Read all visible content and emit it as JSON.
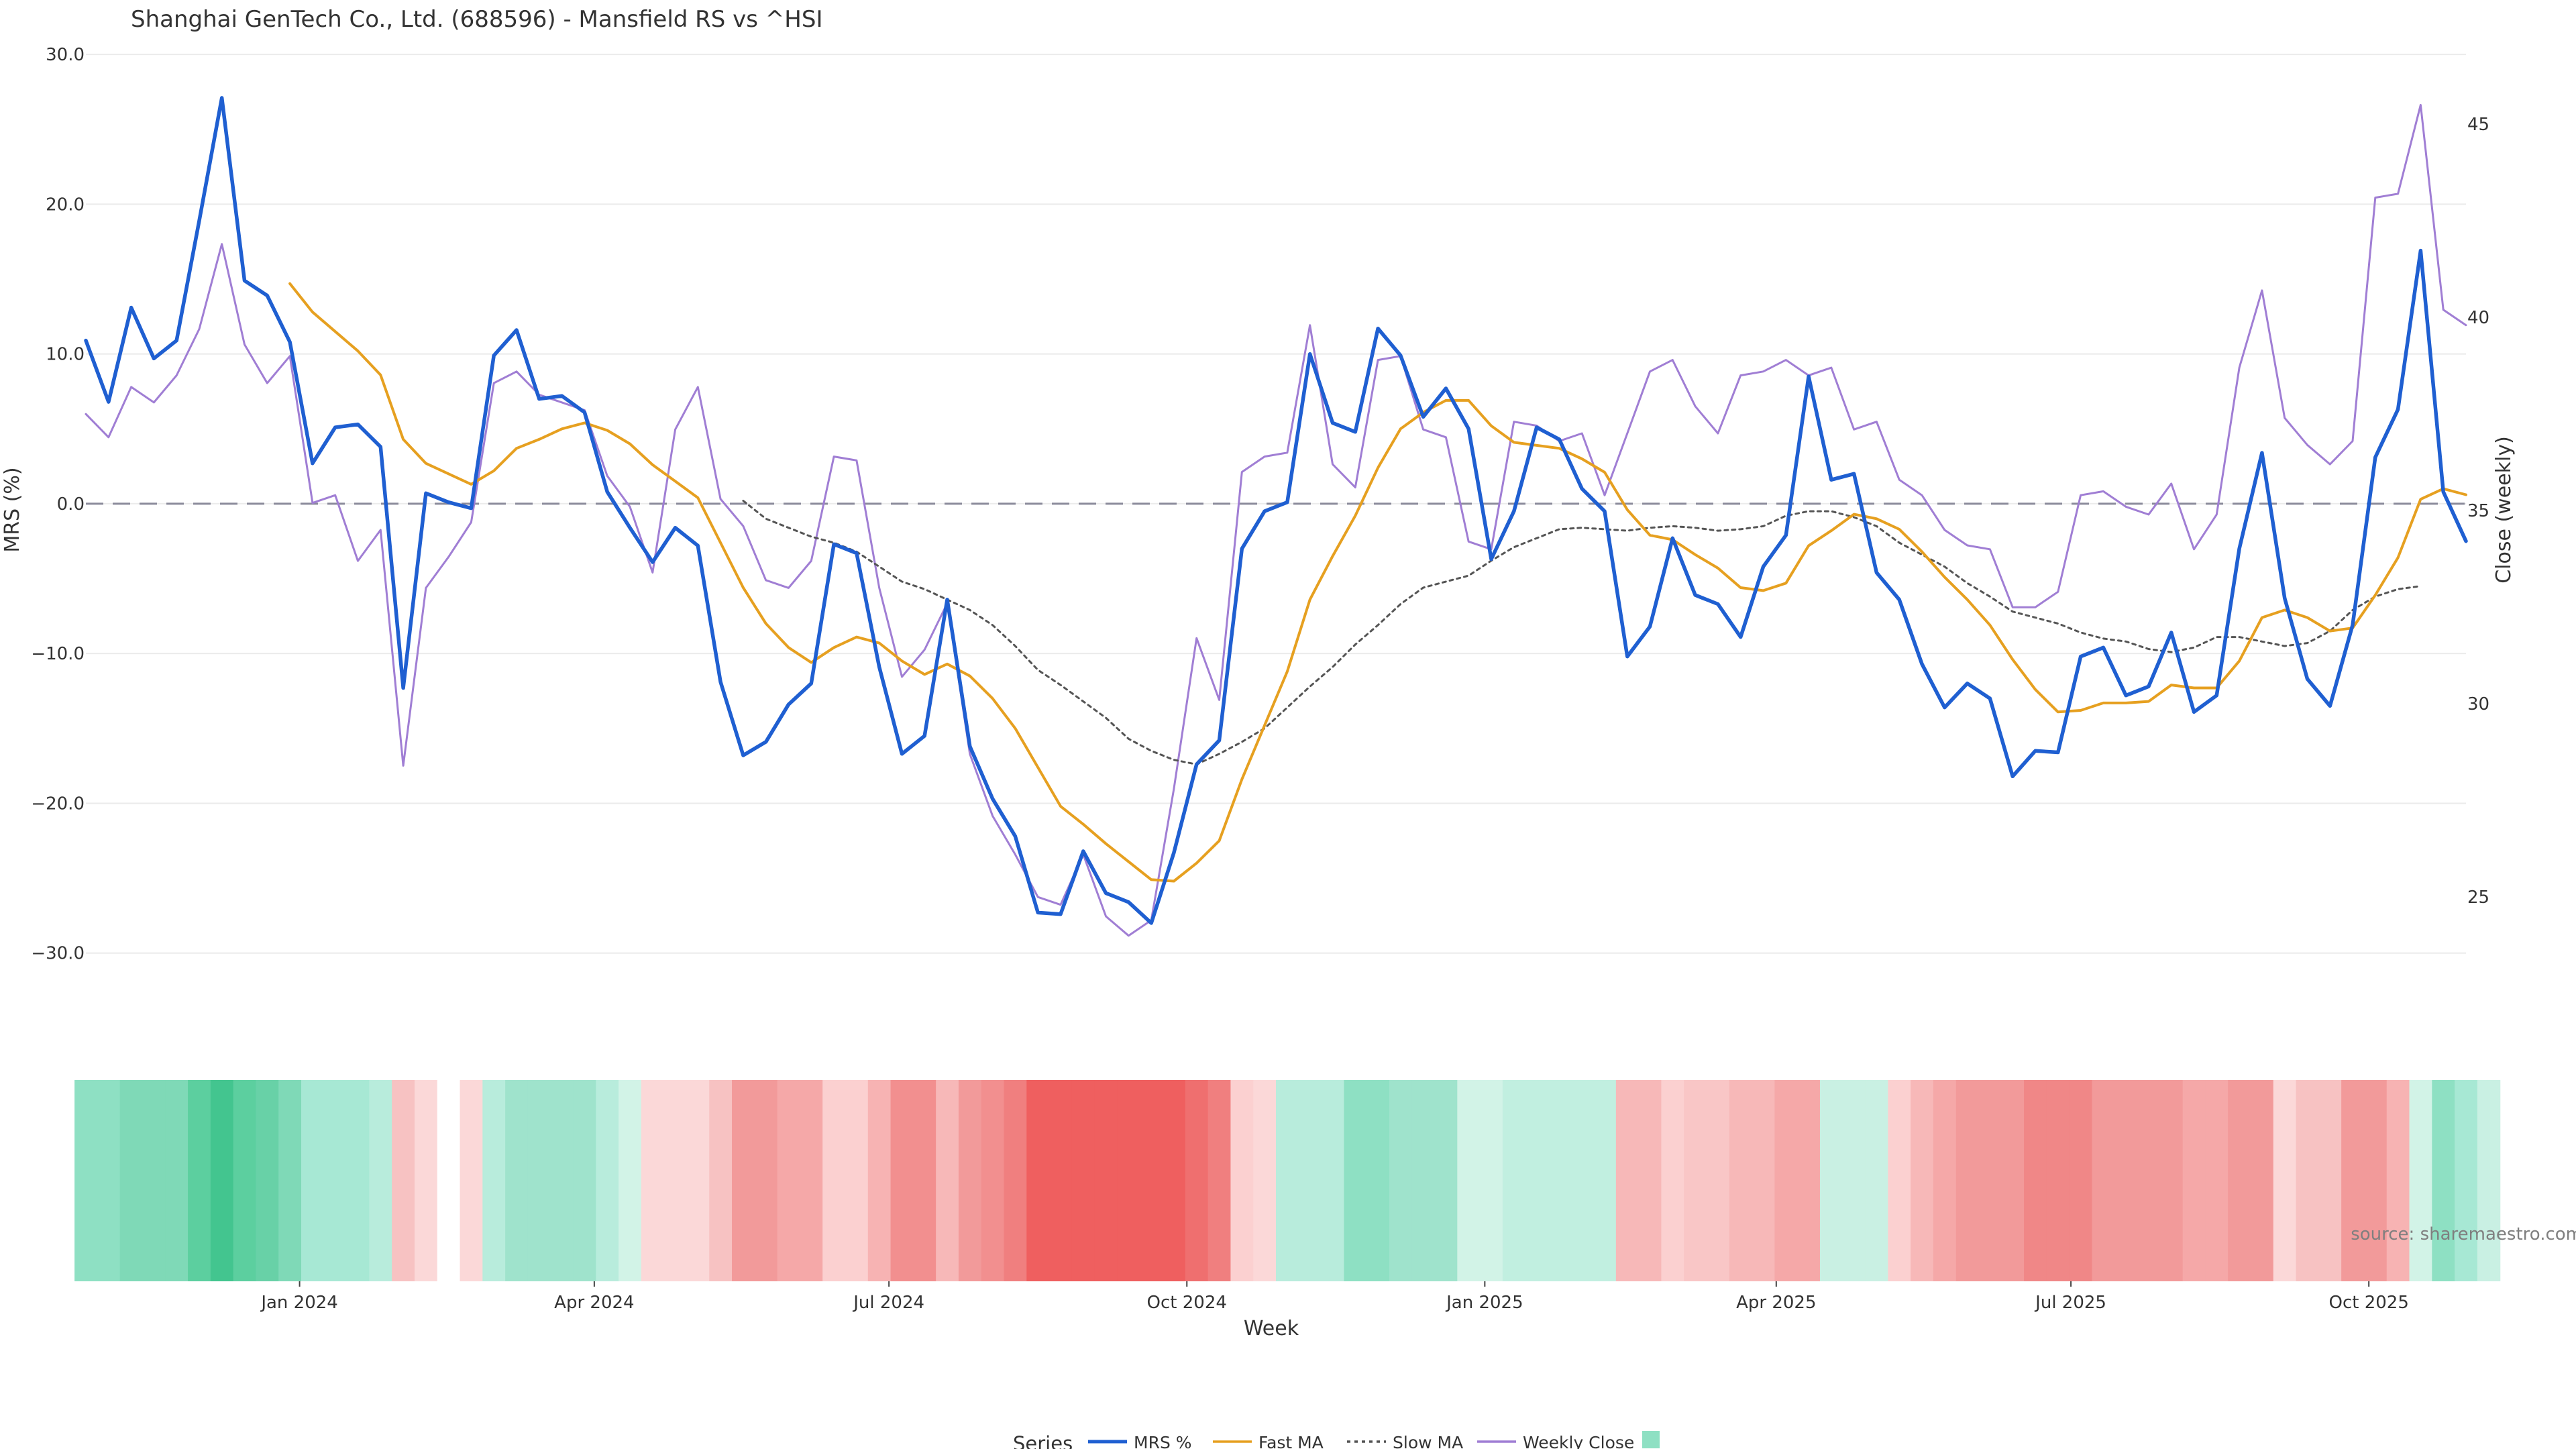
{
  "chart_data": {
    "type": "line",
    "title": "Shanghai GenTech Co., Ltd. (688596) - Mansfield RS vs ^HSI",
    "xlabel": "Week",
    "ylabel": "MRS (%)",
    "ylabel_right": "Close (weekly)",
    "ylim": [
      -34,
      30.5
    ],
    "ylim_right": [
      22,
      47
    ],
    "yticks": [
      30,
      20,
      10,
      0,
      -10,
      -20,
      -30
    ],
    "ytick_labels": [
      "30.0",
      "20.0",
      "10.0",
      "0.0",
      "−10.0",
      "−20.0",
      "−30.0"
    ],
    "yticks_right": [
      45,
      40,
      35,
      30,
      25
    ],
    "ytick_labels_right": [
      "45",
      "40",
      "35",
      "30",
      "25"
    ],
    "week_start": "2023-10-27",
    "x_ticks": [
      {
        "date": "2024-01-01",
        "label": "Jan 2024"
      },
      {
        "date": "2024-04-01",
        "label": "Apr 2024"
      },
      {
        "date": "2024-07-01",
        "label": "Jul 2024"
      },
      {
        "date": "2024-10-01",
        "label": "Oct 2024"
      },
      {
        "date": "2025-01-01",
        "label": "Jan 2025"
      },
      {
        "date": "2025-04-01",
        "label": "Apr 2025"
      },
      {
        "date": "2025-07-01",
        "label": "Jul 2025"
      },
      {
        "date": "2025-10-01",
        "label": "Oct 2025"
      }
    ],
    "zero_line": 0,
    "series": [
      {
        "name": "MRS %",
        "color": "#1f5fd1",
        "dash": "solid",
        "axis": "left",
        "values": [
          10.9,
          6.8,
          13.1,
          9.7,
          10.9,
          18.9,
          27.1,
          14.9,
          13.9,
          10.8,
          2.7,
          5.1,
          5.3,
          3.8,
          -12.3,
          0.7,
          0.1,
          -0.3,
          9.9,
          11.6,
          7.0,
          7.2,
          6.1,
          0.8,
          -1.6,
          -3.9,
          -1.6,
          -2.8,
          -11.9,
          -16.8,
          -15.9,
          -13.4,
          -12.0,
          -2.7,
          -3.3,
          -10.9,
          -16.7,
          -15.5,
          -6.4,
          -16.2,
          -19.7,
          -22.2,
          -27.3,
          -27.4,
          -23.2,
          -26.0,
          -26.6,
          -28.0,
          -23.3,
          -17.4,
          -15.8,
          -3.0,
          -0.5,
          0.1,
          10.0,
          5.4,
          4.8,
          11.7,
          9.9,
          5.8,
          7.7,
          5.0,
          -3.7,
          -0.5,
          5.1,
          4.3,
          1.0,
          -0.5,
          -10.2,
          -8.2,
          -2.3,
          -6.1,
          -6.7,
          -8.9,
          -4.2,
          -2.1,
          8.5,
          1.6,
          2.0,
          -4.6,
          -6.4,
          -10.7,
          -13.6,
          -12.0,
          -13.0,
          -18.2,
          -16.5,
          -16.6,
          -10.2,
          -9.6,
          -12.8,
          -12.2,
          -8.6,
          -13.9,
          -12.8,
          -3.0,
          3.4,
          -6.3,
          -11.7,
          -13.5,
          -8.1,
          3.1,
          6.3,
          16.9,
          0.8,
          -2.5
        ]
      },
      {
        "name": "Fast MA",
        "color": "#e6a020",
        "dash": "solid",
        "axis": "left",
        "values": [
          null,
          null,
          null,
          null,
          null,
          null,
          null,
          null,
          null,
          14.7,
          12.8,
          11.5,
          10.2,
          8.6,
          4.3,
          2.7,
          2.0,
          1.3,
          2.2,
          3.7,
          4.3,
          5.0,
          5.4,
          4.9,
          4.0,
          2.6,
          1.5,
          0.4,
          -2.6,
          -5.6,
          -8.0,
          -9.6,
          -10.6,
          -9.6,
          -8.9,
          -9.3,
          -10.5,
          -11.4,
          -10.7,
          -11.5,
          -13.0,
          -15.0,
          -17.6,
          -20.2,
          -21.4,
          -22.7,
          -23.9,
          -25.1,
          -25.2,
          -24.0,
          -22.5,
          -18.4,
          -14.8,
          -11.2,
          -6.4,
          -3.5,
          -0.8,
          2.4,
          5.0,
          6.1,
          6.9,
          6.9,
          5.2,
          4.1,
          3.9,
          3.7,
          3.0,
          2.1,
          -0.4,
          -2.1,
          -2.4,
          -3.4,
          -4.3,
          -5.6,
          -5.8,
          -5.3,
          -2.8,
          -1.8,
          -0.7,
          -1.0,
          -1.7,
          -3.2,
          -4.9,
          -6.4,
          -8.1,
          -10.4,
          -12.4,
          -13.9,
          -13.8,
          -13.3,
          -13.3,
          -13.2,
          -12.1,
          -12.3,
          -12.3,
          -10.5,
          -7.6,
          -7.1,
          -7.6,
          -8.5,
          -8.3,
          -6.1,
          -3.6,
          0.3,
          1.0,
          0.6
        ]
      },
      {
        "name": "Slow MA",
        "color": "#555555",
        "dash": "dotted",
        "axis": "left",
        "values": [
          null,
          null,
          null,
          null,
          null,
          null,
          null,
          null,
          null,
          null,
          null,
          null,
          null,
          null,
          null,
          null,
          null,
          null,
          null,
          null,
          null,
          null,
          null,
          null,
          null,
          null,
          null,
          null,
          null,
          0.2,
          -1.0,
          -1.6,
          -2.2,
          -2.6,
          -3.2,
          -4.2,
          -5.2,
          -5.7,
          -6.4,
          -7.1,
          -8.1,
          -9.5,
          -11.1,
          -12.1,
          -13.2,
          -14.3,
          -15.7,
          -16.5,
          -17.1,
          -17.4,
          -16.7,
          -15.9,
          -15.0,
          -13.6,
          -12.2,
          -10.9,
          -9.4,
          -8.1,
          -6.7,
          -5.6,
          -5.2,
          -4.8,
          -3.8,
          -2.9,
          -2.3,
          -1.7,
          -1.6,
          -1.7,
          -1.8,
          -1.6,
          -1.5,
          -1.6,
          -1.8,
          -1.7,
          -1.5,
          -0.8,
          -0.5,
          -0.5,
          -0.9,
          -1.5,
          -2.6,
          -3.4,
          -4.2,
          -5.3,
          -6.2,
          -7.2,
          -7.6,
          -8.0,
          -8.6,
          -9.0,
          -9.2,
          -9.7,
          -9.9,
          -9.6,
          -8.9,
          -8.9,
          -9.2,
          -9.5,
          -9.3,
          -8.5,
          -7.1,
          -6.2,
          -5.7,
          -5.5
        ]
      },
      {
        "name": "Weekly Close",
        "color": "#a07ed4",
        "dash": "solid",
        "axis": "right",
        "values": [
          37.5,
          36.9,
          38.2,
          37.8,
          38.5,
          39.7,
          41.9,
          39.3,
          38.3,
          39.0,
          35.2,
          35.4,
          33.7,
          34.5,
          28.4,
          33.0,
          33.8,
          34.7,
          38.3,
          38.6,
          38.0,
          37.8,
          37.6,
          35.9,
          35.1,
          33.4,
          37.1,
          38.2,
          35.3,
          34.6,
          33.2,
          33.0,
          33.7,
          36.4,
          36.3,
          33.0,
          30.7,
          31.4,
          32.6,
          28.7,
          27.1,
          26.1,
          25.0,
          24.8,
          26.1,
          24.5,
          24.0,
          24.4,
          27.8,
          31.7,
          30.1,
          36.0,
          36.4,
          36.5,
          39.8,
          36.2,
          35.6,
          38.9,
          39.0,
          37.1,
          36.9,
          34.2,
          34.0,
          37.3,
          37.2,
          36.8,
          37.0,
          35.4,
          37.0,
          38.6,
          38.9,
          37.7,
          37.0,
          38.5,
          38.6,
          38.9,
          38.5,
          38.7,
          37.1,
          37.3,
          35.8,
          35.4,
          34.5,
          34.1,
          34.0,
          32.5,
          32.5,
          32.9,
          35.4,
          35.5,
          35.1,
          34.9,
          35.7,
          34.0,
          34.9,
          38.7,
          40.7,
          37.4,
          36.7,
          36.2,
          36.8,
          43.1,
          43.2,
          45.5,
          40.2,
          39.8
        ]
      }
    ],
    "heatmap_band": {
      "colors": [
        "#8ee0c3",
        "#8ee0c3",
        "#7fd9b7",
        "#7fd9b7",
        "#7fd9b7",
        "#5ccf9f",
        "#43c58f",
        "#5ccf9f",
        "#68d1a7",
        "#7fd9b7",
        "#a7e8d4",
        "#a7e8d4",
        "#a7e8d4",
        "#b8ecdc",
        "#f7c2c2",
        "#fbd8d8",
        "#ffffff",
        "#fbd8d8",
        "#b8ecdc",
        "#9fe3cc",
        "#9fe3cc",
        "#9fe3cc",
        "#9fe3cc",
        "#b8ecdc",
        "#d2f3e7",
        "#fbd8d8",
        "#fbd8d8",
        "#fbd8d8",
        "#f7c2c2",
        "#f29a9a",
        "#f29a9a",
        "#f5a8a8",
        "#f5a8a8",
        "#fbd0d0",
        "#fbd0d0",
        "#f7b3b3",
        "#f28f8f",
        "#f28f8f",
        "#f7b8b8",
        "#f29a9a",
        "#f28f8f",
        "#f07f7f",
        "#ef5f5f",
        "#ef5f5f",
        "#ef5f5f",
        "#ef5f5f",
        "#ef5f5f",
        "#ef5f5f",
        "#ef5f5f",
        "#ef6f6f",
        "#f07f7f",
        "#fbd0d0",
        "#fbd8d8",
        "#b8ecdc",
        "#b8ecdc",
        "#b8ecdc",
        "#8ee0c3",
        "#8ee0c3",
        "#9fe3cc",
        "#9fe3cc",
        "#9fe3cc",
        "#d2f3e7",
        "#d2f3e7",
        "#c1efe0",
        "#c1efe0",
        "#c1efe0",
        "#c1efe0",
        "#c1efe0",
        "#f7b8b8",
        "#f7b8b8",
        "#fbd0d0",
        "#f9c6c6",
        "#f9c6c6",
        "#f7b8b8",
        "#f7b8b8",
        "#f5a8a8",
        "#f5a8a8",
        "#c9f0e3",
        "#c9f0e3",
        "#c9f0e3",
        "#fbd0d0",
        "#f7b8b8",
        "#f5a8a8",
        "#f29a9a",
        "#f29a9a",
        "#f29a9a",
        "#f08787",
        "#f08787",
        "#f08787",
        "#f29a9a",
        "#f29a9a",
        "#f29a9a",
        "#f29a9a",
        "#f5a8a8",
        "#f5a8a8",
        "#f29a9a",
        "#f29a9a",
        "#fbd8d8",
        "#f7c2c2",
        "#f7c2c2",
        "#f29a9a",
        "#f29a9a",
        "#f7b3b3",
        "#d2f3e7",
        "#8ee0c3",
        "#a7e8d4",
        "#c9f0e3"
      ]
    },
    "legend_title": "Series",
    "legend_position": "bottom-center",
    "source": "source: sharemaestro.com"
  }
}
